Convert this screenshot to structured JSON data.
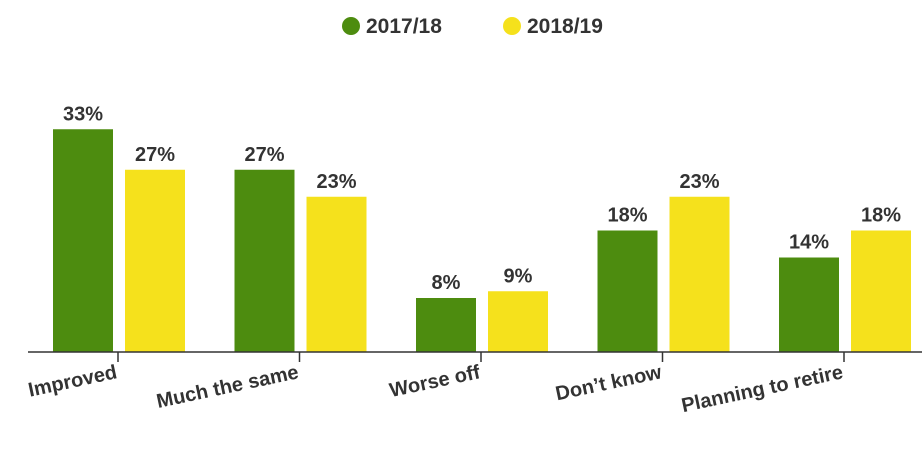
{
  "chart_data": {
    "type": "bar",
    "categories": [
      "Improved",
      "Much the same",
      "Worse off",
      "Don’t know",
      "Planning to retire"
    ],
    "series": [
      {
        "name": "2017/18",
        "values": [
          33,
          27,
          8,
          18,
          14
        ],
        "color": "#4d8c0f"
      },
      {
        "name": "2018/19",
        "values": [
          27,
          23,
          9,
          23,
          18
        ],
        "color": "#f5e11c"
      }
    ],
    "value_suffix": "%",
    "legend_position": "top-center",
    "grid": false,
    "ylim": [
      0,
      33
    ]
  }
}
